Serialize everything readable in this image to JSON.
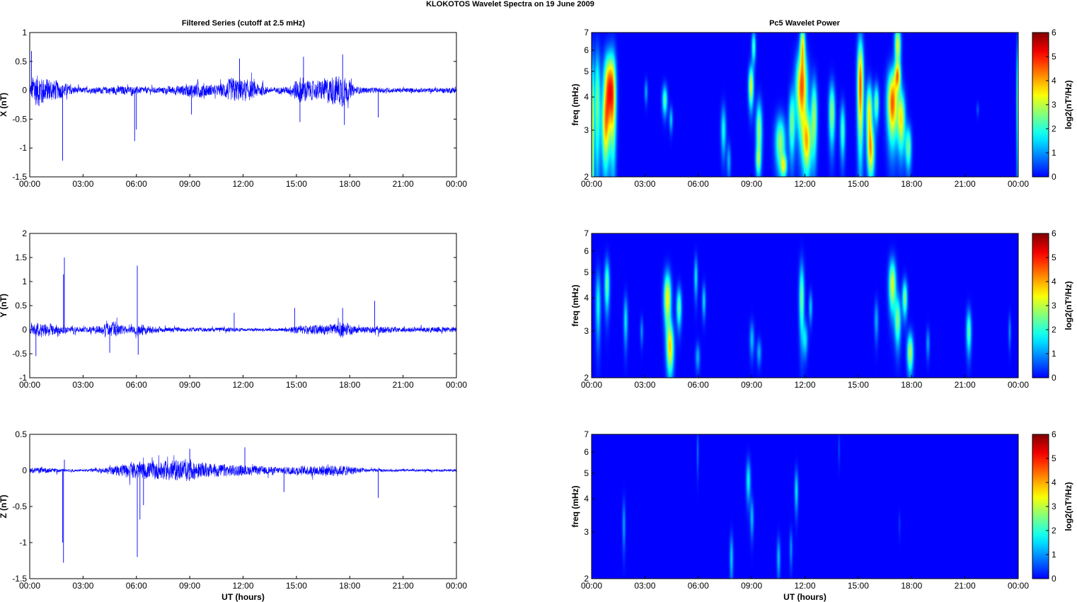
{
  "figure": {
    "title": "KLOKOTOS Wavelet Spectra on 19 June      2009",
    "left_column_title": "Filtered Series (cutoff at 2.5 mHz)",
    "right_column_title": "Pc5 Wavelet Power"
  },
  "chart_data": [
    {
      "type": "line",
      "panel": "X",
      "ylabel": "X (nT)",
      "xlabel": "",
      "ylim": [
        -1.5,
        1
      ],
      "yticks": [
        "-1.5",
        "-1",
        "-0.5",
        "0",
        "0.5",
        "1"
      ],
      "xticks": [
        "00:00",
        "03:00",
        "06:00",
        "09:00",
        "12:00",
        "15:00",
        "18:00",
        "21:00",
        "00:00"
      ],
      "xlim_hours": [
        0,
        24
      ],
      "color": "#0000ff",
      "envelope": [
        [
          0,
          0.05
        ],
        [
          0.2,
          0.4
        ],
        [
          1,
          0.28
        ],
        [
          2.5,
          0.08
        ],
        [
          3,
          0.06
        ],
        [
          4,
          0.07
        ],
        [
          5,
          0.1
        ],
        [
          6,
          0.08
        ],
        [
          7,
          0.06
        ],
        [
          8,
          0.09
        ],
        [
          9,
          0.14
        ],
        [
          9.5,
          0.18
        ],
        [
          10.5,
          0.1
        ],
        [
          11.5,
          0.28
        ],
        [
          12.5,
          0.2
        ],
        [
          13.5,
          0.06
        ],
        [
          14.5,
          0.08
        ],
        [
          15.2,
          0.3
        ],
        [
          16,
          0.18
        ],
        [
          17,
          0.3
        ],
        [
          17.6,
          0.35
        ],
        [
          18.3,
          0.08
        ],
        [
          19,
          0.06
        ],
        [
          21,
          0.05
        ],
        [
          23,
          0.05
        ],
        [
          24,
          0.07
        ]
      ],
      "spikes": [
        [
          1.85,
          -1.22
        ],
        [
          0.1,
          0.68
        ],
        [
          5.9,
          -0.88
        ],
        [
          6.0,
          -0.68
        ],
        [
          17.6,
          0.62
        ],
        [
          15.4,
          0.58
        ],
        [
          11.8,
          0.55
        ],
        [
          17.7,
          -0.6
        ],
        [
          15.2,
          -0.55
        ],
        [
          19.6,
          -0.47
        ],
        [
          9.1,
          -0.42
        ]
      ]
    },
    {
      "type": "line",
      "panel": "Y",
      "ylabel": "Y (nT)",
      "xlabel": "",
      "ylim": [
        -1,
        2
      ],
      "yticks": [
        "-1",
        "-0.5",
        "0",
        "0.5",
        "1",
        "1.5",
        "2"
      ],
      "xticks": [
        "00:00",
        "03:00",
        "06:00",
        "09:00",
        "12:00",
        "15:00",
        "18:00",
        "21:00",
        "00:00"
      ],
      "xlim_hours": [
        0,
        24
      ],
      "color": "#0000ff",
      "envelope": [
        [
          0,
          0.1
        ],
        [
          0.5,
          0.22
        ],
        [
          1.5,
          0.12
        ],
        [
          3,
          0.06
        ],
        [
          4,
          0.12
        ],
        [
          4.8,
          0.2
        ],
        [
          5.5,
          0.08
        ],
        [
          6.3,
          0.14
        ],
        [
          7.5,
          0.06
        ],
        [
          9,
          0.05
        ],
        [
          11,
          0.06
        ],
        [
          12,
          0.04
        ],
        [
          14,
          0.04
        ],
        [
          15,
          0.1
        ],
        [
          17,
          0.14
        ],
        [
          17.6,
          0.2
        ],
        [
          18.5,
          0.08
        ],
        [
          19.5,
          0.1
        ],
        [
          21,
          0.06
        ],
        [
          24,
          0.08
        ]
      ],
      "spikes": [
        [
          1.95,
          1.5
        ],
        [
          1.9,
          1.15
        ],
        [
          6.05,
          1.33
        ],
        [
          6.1,
          -0.52
        ],
        [
          0.35,
          -0.55
        ],
        [
          4.5,
          -0.48
        ],
        [
          19.4,
          0.6
        ],
        [
          17.6,
          0.45
        ],
        [
          14.9,
          0.45
        ],
        [
          11.5,
          0.35
        ]
      ]
    },
    {
      "type": "line",
      "panel": "Z",
      "ylabel": "Z (nT)",
      "xlabel": "UT (hours)",
      "ylim": [
        -1.5,
        0.5
      ],
      "yticks": [
        "-1.5",
        "-1",
        "-0.5",
        "0",
        "0.5"
      ],
      "xticks": [
        "00:00",
        "03:00",
        "06:00",
        "09:00",
        "12:00",
        "15:00",
        "18:00",
        "21:00",
        "00:00"
      ],
      "xlim_hours": [
        0,
        24
      ],
      "color": "#0000ff",
      "envelope": [
        [
          0,
          0.06
        ],
        [
          1.5,
          0.04
        ],
        [
          2,
          0.02
        ],
        [
          3,
          0.02
        ],
        [
          4.5,
          0.06
        ],
        [
          5.5,
          0.12
        ],
        [
          7,
          0.16
        ],
        [
          9,
          0.18
        ],
        [
          10,
          0.12
        ],
        [
          11.5,
          0.1
        ],
        [
          12.5,
          0.08
        ],
        [
          14,
          0.06
        ],
        [
          15.5,
          0.08
        ],
        [
          17,
          0.1
        ],
        [
          18,
          0.08
        ],
        [
          19,
          0.03
        ],
        [
          21,
          0.02
        ],
        [
          24,
          0.02
        ]
      ],
      "spikes": [
        [
          1.9,
          -1.28
        ],
        [
          1.85,
          -1.0
        ],
        [
          6.05,
          -1.2
        ],
        [
          6.2,
          -0.68
        ],
        [
          6.4,
          -0.48
        ],
        [
          19.6,
          -0.38
        ],
        [
          14.3,
          -0.3
        ],
        [
          12.1,
          0.32
        ],
        [
          9.0,
          0.3
        ],
        [
          1.95,
          0.15
        ]
      ]
    },
    {
      "type": "heatmap",
      "panel": "X",
      "title": "Pc5 Wavelet Power",
      "ylabel": "freq (mHz)",
      "xlabel": "",
      "ylim_mHz": [
        2,
        7
      ],
      "yscale": "log",
      "yticks": [
        "2",
        "3",
        "4",
        "5",
        "6",
        "7"
      ],
      "xticks": [
        "00:00",
        "03:00",
        "06:00",
        "09:00",
        "12:00",
        "15:00",
        "18:00",
        "21:00",
        "00:00"
      ],
      "colorbar_label": "log2(nT²/Hz)",
      "colorbar_ticks": [
        "0",
        "1",
        "2",
        "3",
        "4",
        "5",
        "6"
      ],
      "colorbar_range": [
        0,
        6
      ],
      "blobs": [
        [
          0.3,
          3.8,
          0.12,
          1.4,
          2.5
        ],
        [
          0.95,
          4.3,
          0.2,
          1.0,
          4.6
        ],
        [
          0.75,
          3.0,
          0.15,
          0.7,
          2.8
        ],
        [
          1.2,
          3.8,
          0.12,
          1.3,
          2.5
        ],
        [
          3.05,
          4.2,
          0.06,
          0.3,
          1.2
        ],
        [
          4.1,
          3.9,
          0.1,
          0.35,
          2.3
        ],
        [
          4.45,
          3.3,
          0.07,
          0.25,
          1.4
        ],
        [
          7.4,
          3.0,
          0.1,
          0.45,
          1.8
        ],
        [
          7.7,
          2.3,
          0.08,
          0.25,
          1.2
        ],
        [
          8.95,
          4.4,
          0.1,
          0.55,
          3.3
        ],
        [
          9.1,
          6.2,
          0.08,
          0.6,
          2.2
        ],
        [
          9.4,
          3.0,
          0.12,
          0.55,
          2.8
        ],
        [
          9.35,
          2.3,
          0.1,
          0.2,
          1.8
        ],
        [
          10.6,
          2.7,
          0.2,
          0.45,
          2.8
        ],
        [
          10.8,
          2.2,
          0.12,
          0.15,
          2.6
        ],
        [
          11.25,
          3.2,
          0.12,
          0.65,
          2.5
        ],
        [
          11.8,
          4.3,
          0.22,
          1.0,
          4.5
        ],
        [
          11.85,
          6.3,
          0.1,
          0.8,
          3.2
        ],
        [
          12.1,
          2.7,
          0.18,
          0.5,
          3.5
        ],
        [
          12.5,
          3.4,
          0.12,
          0.8,
          2.8
        ],
        [
          13.5,
          3.5,
          0.12,
          0.65,
          2.8
        ],
        [
          14.1,
          3.0,
          0.1,
          0.5,
          2.2
        ],
        [
          15.1,
          4.4,
          0.12,
          1.4,
          4.6
        ],
        [
          15.6,
          3.5,
          0.12,
          0.65,
          3.5
        ],
        [
          15.7,
          2.5,
          0.14,
          0.4,
          3.3
        ],
        [
          16.0,
          3.8,
          0.1,
          0.45,
          2.5
        ],
        [
          16.9,
          3.8,
          0.2,
          0.8,
          4.6
        ],
        [
          17.2,
          6.3,
          0.12,
          0.8,
          3.3
        ],
        [
          17.4,
          3.3,
          0.15,
          0.6,
          3.5
        ],
        [
          17.8,
          2.6,
          0.12,
          0.35,
          2.5
        ],
        [
          17.2,
          4.8,
          0.12,
          0.4,
          3.2
        ],
        [
          21.7,
          3.6,
          0.05,
          0.15,
          0.6
        ],
        [
          23.95,
          4.0,
          0.05,
          1.6,
          2.5
        ],
        [
          0.05,
          3.0,
          0.05,
          1.6,
          3.0
        ]
      ]
    },
    {
      "type": "heatmap",
      "panel": "Y",
      "title": "",
      "ylabel": "freq (mHz)",
      "xlabel": "",
      "ylim_mHz": [
        2,
        7
      ],
      "yscale": "log",
      "yticks": [
        "2",
        "3",
        "4",
        "5",
        "6",
        "7"
      ],
      "xticks": [
        "00:00",
        "03:00",
        "06:00",
        "09:00",
        "12:00",
        "15:00",
        "18:00",
        "21:00",
        "00:00"
      ],
      "colorbar_label": "log2(nT²/Hz)",
      "colorbar_ticks": [
        "0",
        "1",
        "2",
        "3",
        "4",
        "5",
        "6"
      ],
      "colorbar_range": [
        0,
        6
      ],
      "blobs": [
        [
          0.35,
          3.8,
          0.1,
          0.8,
          1.8
        ],
        [
          0.85,
          4.5,
          0.1,
          0.7,
          2.4
        ],
        [
          1.9,
          3.3,
          0.08,
          0.5,
          1.6
        ],
        [
          2.8,
          3.0,
          0.06,
          0.25,
          1.0
        ],
        [
          4.25,
          4.0,
          0.14,
          0.65,
          3.6
        ],
        [
          4.4,
          2.6,
          0.14,
          0.4,
          3.6
        ],
        [
          4.9,
          3.7,
          0.1,
          0.45,
          2.4
        ],
        [
          5.85,
          4.8,
          0.07,
          0.6,
          1.6
        ],
        [
          6.3,
          3.9,
          0.07,
          0.4,
          1.5
        ],
        [
          5.95,
          2.4,
          0.09,
          0.2,
          1.2
        ],
        [
          9.0,
          2.8,
          0.09,
          0.3,
          1.3
        ],
        [
          9.4,
          2.5,
          0.09,
          0.2,
          1.2
        ],
        [
          11.8,
          4.0,
          0.1,
          0.9,
          2.5
        ],
        [
          12.0,
          2.8,
          0.1,
          0.3,
          1.5
        ],
        [
          12.3,
          3.7,
          0.07,
          0.35,
          1.4
        ],
        [
          16.0,
          3.3,
          0.08,
          0.4,
          1.2
        ],
        [
          16.9,
          4.5,
          0.14,
          0.7,
          3.3
        ],
        [
          17.2,
          3.3,
          0.12,
          0.5,
          2.6
        ],
        [
          17.6,
          4.0,
          0.1,
          0.45,
          2.6
        ],
        [
          17.9,
          2.5,
          0.12,
          0.3,
          3.0
        ],
        [
          18.9,
          2.7,
          0.07,
          0.25,
          1.1
        ],
        [
          21.2,
          3.0,
          0.1,
          0.4,
          2.3
        ],
        [
          23.5,
          3.0,
          0.05,
          0.3,
          1.0
        ]
      ]
    },
    {
      "type": "heatmap",
      "panel": "Z",
      "title": "",
      "ylabel": "freq (mHz)",
      "xlabel": "UT (hours)",
      "ylim_mHz": [
        2,
        7
      ],
      "yscale": "log",
      "yticks": [
        "2",
        "3",
        "4",
        "5",
        "6",
        "7"
      ],
      "xticks": [
        "00:00",
        "03:00",
        "06:00",
        "09:00",
        "12:00",
        "15:00",
        "18:00",
        "21:00",
        "00:00"
      ],
      "colorbar_label": "log2(nT²/Hz)",
      "colorbar_ticks": [
        "0",
        "1",
        "2",
        "3",
        "4",
        "5",
        "6"
      ],
      "colorbar_range": [
        0,
        6
      ],
      "blobs": [
        [
          1.8,
          3.2,
          0.06,
          0.5,
          1.1
        ],
        [
          5.95,
          6.0,
          0.04,
          0.8,
          0.8
        ],
        [
          7.85,
          2.4,
          0.07,
          0.35,
          1.4
        ],
        [
          8.8,
          4.7,
          0.09,
          0.6,
          1.7
        ],
        [
          9.0,
          3.4,
          0.07,
          0.4,
          1.3
        ],
        [
          10.5,
          2.4,
          0.07,
          0.3,
          1.3
        ],
        [
          11.2,
          2.6,
          0.06,
          0.3,
          1.0
        ],
        [
          11.5,
          4.3,
          0.07,
          0.55,
          1.6
        ],
        [
          13.9,
          6.2,
          0.04,
          0.6,
          0.5
        ],
        [
          17.3,
          3.2,
          0.04,
          0.25,
          0.4
        ]
      ]
    }
  ]
}
